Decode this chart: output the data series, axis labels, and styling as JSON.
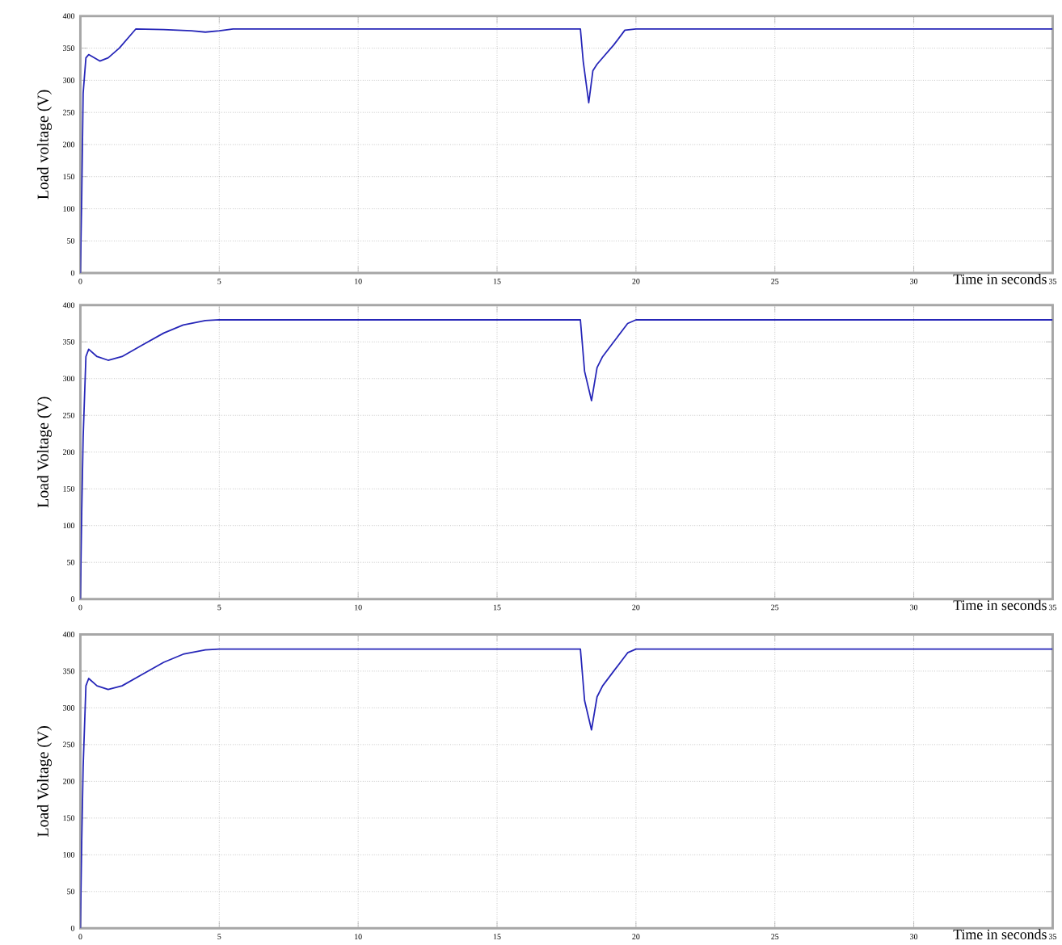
{
  "chart_data": [
    {
      "type": "line",
      "xlabel": "Time in seconds",
      "ylabel": "Load voltage (V)",
      "color": "#2626b8",
      "grid": true,
      "xlim": [
        0,
        35
      ],
      "ylim": [
        0,
        400
      ],
      "xticks": [
        0,
        5,
        10,
        15,
        20,
        25,
        30,
        35
      ],
      "yticks": [
        0,
        50,
        100,
        150,
        200,
        250,
        300,
        350,
        400
      ],
      "x": [
        0,
        0.05,
        0.1,
        0.2,
        0.3,
        0.5,
        0.7,
        1.0,
        1.4,
        1.8,
        2.0,
        3.0,
        4.0,
        4.5,
        5.0,
        5.5,
        10,
        15,
        18.0,
        18.1,
        18.3,
        18.45,
        18.6,
        18.8,
        19.2,
        19.6,
        20,
        25,
        30,
        35
      ],
      "values": [
        0,
        120,
        280,
        335,
        340,
        335,
        330,
        335,
        350,
        370,
        380,
        379,
        377,
        375,
        377,
        380,
        380,
        380,
        380,
        330,
        265,
        315,
        325,
        335,
        355,
        378,
        380,
        380,
        380,
        380
      ]
    },
    {
      "type": "line",
      "xlabel": "Time in seconds",
      "ylabel": "Load Voltage (V)",
      "color": "#2626b8",
      "grid": true,
      "xlim": [
        0,
        35
      ],
      "ylim": [
        0,
        400
      ],
      "xticks": [
        0,
        5,
        10,
        15,
        20,
        25,
        30,
        35
      ],
      "yticks": [
        0,
        50,
        100,
        150,
        200,
        250,
        300,
        350,
        400
      ],
      "x": [
        0,
        0.05,
        0.1,
        0.2,
        0.3,
        0.6,
        1.0,
        1.5,
        2.2,
        3.0,
        3.7,
        4.5,
        5.0,
        10,
        15,
        18.0,
        18.15,
        18.4,
        18.6,
        18.8,
        19.2,
        19.7,
        20,
        25,
        30,
        35
      ],
      "values": [
        0,
        120,
        220,
        330,
        340,
        330,
        325,
        330,
        345,
        362,
        373,
        379,
        380,
        380,
        380,
        380,
        310,
        270,
        315,
        330,
        350,
        375,
        380,
        380,
        380,
        380
      ]
    },
    {
      "type": "line",
      "xlabel": "Time in seconds",
      "ylabel": "Load Voltage (V)",
      "color": "#2626b8",
      "grid": true,
      "xlim": [
        0,
        35
      ],
      "ylim": [
        0,
        400
      ],
      "xticks": [
        0,
        5,
        10,
        15,
        20,
        25,
        30,
        35
      ],
      "yticks": [
        0,
        50,
        100,
        150,
        200,
        250,
        300,
        350,
        400
      ],
      "x": [
        0,
        0.05,
        0.1,
        0.2,
        0.3,
        0.6,
        1.0,
        1.5,
        2.2,
        3.0,
        3.7,
        4.5,
        5.0,
        10,
        15,
        18.0,
        18.15,
        18.4,
        18.6,
        18.8,
        19.2,
        19.7,
        20,
        25,
        30,
        35
      ],
      "values": [
        0,
        120,
        220,
        330,
        340,
        330,
        325,
        330,
        345,
        362,
        373,
        379,
        380,
        380,
        380,
        380,
        310,
        270,
        315,
        330,
        350,
        375,
        380,
        380,
        380,
        380
      ]
    }
  ]
}
